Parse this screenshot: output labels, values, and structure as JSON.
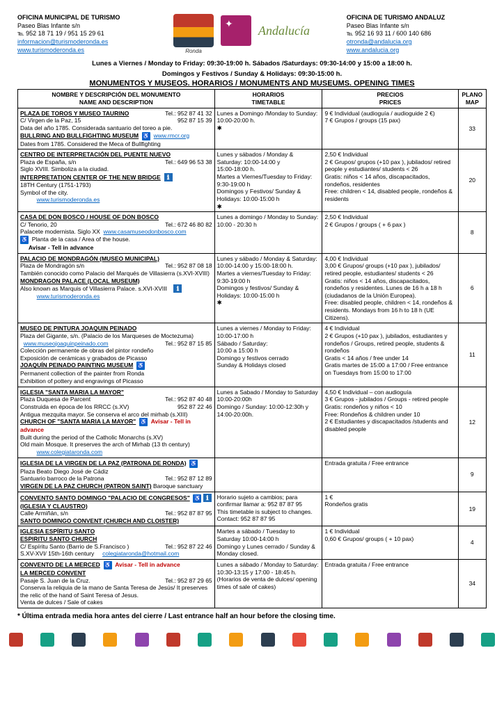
{
  "header": {
    "left": {
      "title": "OFICINA MUNICIPAL DE TURISMO",
      "addr": "Paseo Blas Infante s/n",
      "tel": "℡ 952 18 71 19 / 951 15 29 61",
      "email": "informacion@turismoderonda.es",
      "web": "www.turismoderonda.es"
    },
    "right": {
      "title": "OFICINA DE TURISMO ANDALUZ",
      "addr": "Paseo Blas Infante s/n",
      "tel": "℡ 952 16 93 11 / 600 140 686",
      "email": "otronda@andalucia.org",
      "web": "www.andalucia.org"
    },
    "schedule1": "Lunes a Viernes / Monday to Friday: 09:30-19:00 h. Sábados /Saturdays: 09:30-14:00 y 15:00 a 18:00 h.",
    "schedule2": "Domingos y Festivos / Sunday & Holidays: 09:30-15:00 h.",
    "main": "MONUMENTOS Y MUSEOS. HORARIOS / MONUMENTS AND MUSEUMS. OPENING TIMES"
  },
  "th": {
    "c1a": "NOMBRE Y DESCRIPCIÓN DEL MONUMENTO",
    "c1b": "NAME AND DESCRIPTION",
    "c2a": "HORARIOS",
    "c2b": "TIMETABLE",
    "c3a": "PRECIOS",
    "c3b": "PRICES",
    "c4a": "PLANO",
    "c4b": "MAP"
  },
  "r1": {
    "t1": "PLAZA DE TOROS Y MUSEO TAURINO",
    "tel1": "Tel.:    952 87 41 32",
    "addr": "C/ Virgen de la Paz, 15",
    "tel2": "952 87 15 39",
    "desc1": "Data del año 1785.  Considerada santuario del toreo a pie.",
    "t2": "BULLRING AND BULLFIGHTING MUSEUM",
    "link": "www.rmcr.org",
    "desc2": "Dates from 1785. Considered the Meca of Bullfighting",
    "time": "Lunes a Domingo /Monday to Sunday: 10:00-20:00 h.",
    "price": "9 €  Individual  (audioguía /  audioguide 2 €)\n7 €  Grupos / groups (15 pax)",
    "map": "33"
  },
  "r2": {
    "t1": "CENTRO DE INTERPRETACIÓN DEL PUENTE NUEVO",
    "addr": "Plaza de España, s/n",
    "tel": "Tel.: 649 96 53 38",
    "desc1": "Siglo XVIII. Simboliza a la ciudad.",
    "t2": "INTERPRETATION CENTER OF THE NEW BRIDGE",
    "desc2": "18TH Century (1751-1793)",
    "desc3": "Symbol of the city.",
    "link": "www.turismoderonda.es",
    "time": "Lunes y sábados / Monday & Saturday: 10:00-14:00 y\n              15:00-18:00 h.\nMartes a Viernes/Tuesday to Friday: 9:30-19:00 h\nDomingos y Festivos/ Sunday & Holidays: 10:00-15:00 h",
    "price": "2,50 € Individual\n2 € Grupos/ grupos (+10 pax ), jubilados/ retired people y estudiantes/ students < 26\nGratis: niños < 14 años, discapacitados, rondeños, residentes\nFree: children < 14, disabled people, rondeños & residents",
    "map": "20"
  },
  "r3": {
    "t1": "CASA DE DON BOSCO / HOUSE OF DON BOSCO",
    "addr": "C/ Tenorio, 20",
    "tel": "Tel.: 672 46 80 82",
    "desc1": "Palacete modernista. Siglo XX",
    "link": "www.casamuseodonbosco.com",
    "desc2": "Planta de la casa / Area of the house.",
    "desc3": "Avisar - Tell in advance",
    "time": "Lunes a domingo / Monday to Sunday: 10:00 - 20:30 h",
    "price": "2,50 € Individual\n2 € Grupos / groups  ( + 6 pax )",
    "map": "8"
  },
  "r4": {
    "t1": "PALACIO DE MONDRAGÓN (MUSEO MUNICIPAL)",
    "addr": "Plaza de Mondragón s/n",
    "tel": "Tel.: 952 87 08 18",
    "desc1": "También conocido como Palacio del Marqués de Villasierra (s.XVI-XVIII)",
    "t2": "MONDRAGON PALACE (LOCAL MUSEUM)",
    "desc2": "Also known as Marquis of Villasierra Palace.  s.XVI-XVIII",
    "link": "www.turismoderonda.es",
    "time": "Lunes y sábado / Monday & Saturday: 10:00-14:00 y 15:00-18:00 h.\nMartes a viernes/Tuesday to Friday: 9:30-19:00 h\nDomingos y festivos/ Sunday & Holidays: 10:00-15:00 h",
    "price": "4,00 €  Individual\n3,00 € Grupos/ groups (+10 pax ), jubilados/ retired people, estudiantes/ students < 26\nGratis: niños < 14 años, discapacitados, rondeños y residentes. Lunes de 16 h a 18 h (ciudadanos de la Unión Europea).\nFree: disabled people, children < 14, rondeños & residents. Mondays from 16 h to 18 h (UE Citizens).",
    "map": "6"
  },
  "r5": {
    "t1": "MUSEO DE PINTURA JOAQUIN PEINADO",
    "addr": "Plaza del Gigante, s/n.  (Palacio de los Marqueses de Moctezuma)",
    "link1": "www.museojoaquinpeinado.com",
    "tel": "Tel.: 952 87 15 85",
    "desc1": "Colección permanente de obras del pintor rondeño",
    "desc2": "Exposición de cerámicas y grabados de Picasso",
    "t2": "JOAQUÍN PEINADO PAINTING MUSEUM",
    "desc3": "Permanent collection of the painter from Ronda",
    "desc4": "Exhibition of pottery and engravings of Picasso",
    "time": "Lunes a viernes / Monday to Friday: 10:00-17:00 h\nSábado / Saturday:\n10:00 a 15:00 h\nDomingo y festivos cerrado\nSunday & Holidays closed",
    "price": "4 € Individual\n2 € Grupos (+10 pax ), jubilados, estudiantes y rondeños / Groups, retired people,  students & rondeños\nGratis < 14 años / free under 14\nGratis martes de 15:00 a 17:00 / Free entrance on Tuesdays from 15:00 to 17:00",
    "map": "11"
  },
  "r6": {
    "t1": "IGLESIA \"SANTA MARIA LA MAYOR\"",
    "addr": "Plaza Duquesa de Parcent",
    "tel1": "Tel.: 952 87 40 48",
    "desc1": "Construida en época de los RRCC (s.XV)",
    "tel2": "952 87 22 46",
    "desc2": "Antigua mezquita mayor. Se conserva el arco del mirhab (s.XIII)",
    "t2": "CHURCH OF \"SANTA MARIA LA MAYOR\"",
    "adv": "Avisar - Tell in advance",
    "desc3": "Built during the period of the Catholic Monarchs (s.XV)",
    "desc4": "Old main Mosque. It preserves the arch of Mirhab (13 th century)",
    "link": "www.colegiataronda.com",
    "time": "Lunes a Sabado / Monday to Saturday 10:00-20:00h\nDomingo / Sunday: 10:00-12:30h y 14:00-20:00h.",
    "price": "4,50 € Individual – con audioguía\n3 €   Grupos - jubilados / Groups - retired people\nGratis: rondeños y niños < 10\nFree: Rondeños & children under 10\n2 € Estudiantes y discapacitados /students and disabled people",
    "map": "12"
  },
  "r7": {
    "t1": "IGLESIA DE LA VIRGEN DE LA PAZ (PATRONA DE RONDA)",
    "addr": "Plaza Beato Diego José de Cádiz",
    "desc1": "Santuario barroco de la Patrona",
    "tel": "Tel.: 952 87 12 89",
    "t2": "VIRGEN DE LA PAZ CHURCH (PATRON SAINT)",
    "desc2": "Baroque sanctuary",
    "price": "Entrada gratuita / Free entrance",
    "map": "9"
  },
  "r8": {
    "t1": "CONVENTO SANTO DOMINGO \"PALACIO DE CONGRESOS\"",
    "sub": "(IGLESIA Y CLAUSTRO)",
    "addr": "Calle Armiñán, s/n",
    "tel": "Tel.: 952 87 87 95",
    "t2": "SANTO DOMINGO CONVENT (CHURCH AND CLOISTER)",
    "time": "Horario sujeto a cambios; para confirmar llamar a: 952 87 87 95\nThis timetable is subject to changes. Contact: 952 87 87 95",
    "price": "1 €\nRondeños gratis",
    "map": "19"
  },
  "r9": {
    "t1": "IGLESIA ESPÍRITU SANTO",
    "t1b": "ESPIRITU SANTO CHURCH",
    "addr": "C/ Espíritu Santo (Barrio de S.Francisco )",
    "tel": "Tel.: 952 87 22 46",
    "desc": "S.XV-XVI/ 15th-16th century",
    "link": "colegiataronda@hotmail.com",
    "time": "Martes a sábado / Tuesday to Saturday 10:00-14:00 h\nDomingo y Lunes cerrado / Sunday & Monday closed.",
    "price": "1 € Individual\n0,60 € Grupos/ groups ( + 10 pax)",
    "map": "4"
  },
  "r10": {
    "t1": "CONVENTO DE LA MERCED",
    "adv": "Avisar - Tell in advance",
    "t2": "LA MERCED CONVENT",
    "addr": "Pasaje S. Juan de la Cruz.",
    "tel": "Tel.: 952 87 29 65",
    "desc1": "Conserva la reliquia de la mano de Santa Teresa de Jesús/ It preserves the relic of the hand of Saint Teresa of Jesus.",
    "desc2": "Venta de dulces / Sale of cakes",
    "time": "Lunes a sábado / Monday to Saturday: 10:30-13:15 y 17:00 - 18:45 h.\n(Horarios de venta de dulces/ opening times of sale of cakes)",
    "price": "Entrada gratuita / Free entrance",
    "map": "34"
  },
  "footnote": "* Última entrada media hora antes del cierre / Last entrance half an hour before the closing time.",
  "deco_colors": [
    "#c0392b",
    "#16a085",
    "#2c3e50",
    "#f39c12",
    "#8e44ad",
    "#c0392b",
    "#16a085",
    "#f39c12",
    "#2c3e50",
    "#e74c3c",
    "#16a085",
    "#f39c12",
    "#8e44ad",
    "#c0392b",
    "#2c3e50",
    "#16a085"
  ]
}
